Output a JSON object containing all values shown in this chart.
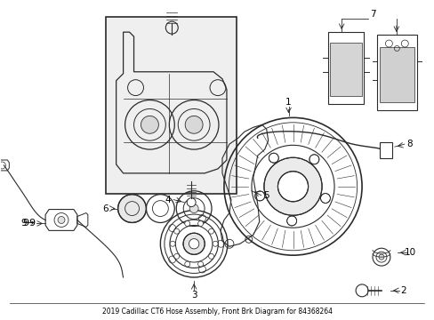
{
  "title": "2019 Cadillac CT6 Hose Assembly, Front Brk Diagram for 84368264",
  "background_color": "#ffffff",
  "line_color": "#2a2a2a",
  "label_color": "#000000",
  "fig_width": 4.89,
  "fig_height": 3.6,
  "dpi": 100
}
